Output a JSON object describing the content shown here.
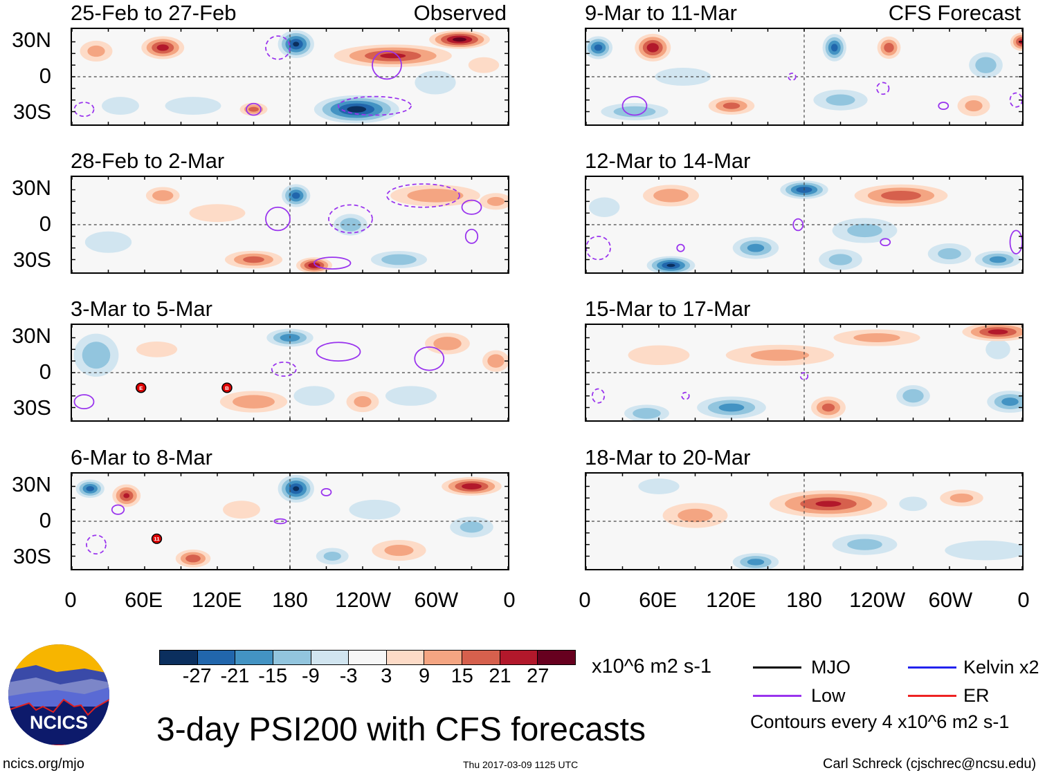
{
  "chart_data": {
    "type": "heatmap",
    "title": "3-day PSI200 with CFS forecasts",
    "units": "x10^6 m2 s-1",
    "column_headers": [
      "Observed",
      "CFS Forecast"
    ],
    "lat_ticks": [
      "30N",
      "0",
      "30S"
    ],
    "lon_ticks": [
      "0",
      "60E",
      "120E",
      "180",
      "120W",
      "60W",
      "0"
    ],
    "colorbar": {
      "ticks": [
        "-27",
        "-21",
        "-15",
        "-9",
        "-3",
        "3",
        "9",
        "15",
        "21",
        "27"
      ],
      "colors": [
        "#0b2f5e",
        "#2166ac",
        "#4393c3",
        "#92c5de",
        "#d1e5f0",
        "#f7f7f7",
        "#fddbc7",
        "#f4a582",
        "#d6604d",
        "#b2182b",
        "#67001f"
      ]
    },
    "panels": [
      {
        "title": "25-Feb to 27-Feb",
        "header": "Observed",
        "col": 0,
        "row": 0,
        "anomalies": [
          [
            75,
            25,
            18,
            10,
            24
          ],
          [
            20,
            22,
            15,
            10,
            12
          ],
          [
            185,
            28,
            15,
            12,
            -28
          ],
          [
            265,
            18,
            50,
            10,
            22
          ],
          [
            320,
            32,
            25,
            8,
            30
          ],
          [
            235,
            -28,
            35,
            12,
            -30
          ],
          [
            150,
            -28,
            12,
            6,
            18
          ],
          [
            100,
            -25,
            30,
            10,
            -6
          ],
          [
            40,
            -25,
            20,
            10,
            -6
          ],
          [
            300,
            -5,
            20,
            12,
            -9
          ],
          [
            340,
            10,
            15,
            8,
            9
          ]
        ],
        "low_contours": [
          [
            260,
            10,
            12,
            12,
            0
          ],
          [
            170,
            25,
            10,
            10,
            1
          ],
          [
            250,
            -25,
            30,
            8,
            1
          ],
          [
            10,
            -28,
            8,
            6,
            1
          ],
          [
            150,
            -28,
            6,
            5,
            0
          ]
        ],
        "storms": []
      },
      {
        "title": "28-Feb to 2-Mar",
        "col": 0,
        "row": 1,
        "anomalies": [
          [
            75,
            25,
            15,
            8,
            15
          ],
          [
            185,
            25,
            12,
            10,
            -24
          ],
          [
            230,
            0,
            15,
            10,
            -15
          ],
          [
            300,
            25,
            40,
            10,
            15
          ],
          [
            150,
            -30,
            25,
            8,
            18
          ],
          [
            200,
            -35,
            15,
            7,
            26
          ],
          [
            270,
            -30,
            25,
            8,
            -15
          ],
          [
            30,
            -15,
            25,
            12,
            -6
          ],
          [
            120,
            10,
            30,
            10,
            6
          ],
          [
            350,
            20,
            15,
            8,
            12
          ]
        ],
        "low_contours": [
          [
            170,
            5,
            10,
            10,
            0
          ],
          [
            230,
            5,
            18,
            12,
            1
          ],
          [
            330,
            15,
            8,
            6,
            0
          ],
          [
            330,
            -10,
            5,
            6,
            0
          ],
          [
            215,
            -33,
            15,
            5,
            0
          ],
          [
            290,
            25,
            30,
            10,
            1
          ]
        ],
        "storms": []
      },
      {
        "title": "3-Mar to 5-Mar",
        "col": 0,
        "row": 2,
        "anomalies": [
          [
            180,
            30,
            20,
            8,
            -20
          ],
          [
            20,
            15,
            20,
            20,
            -15
          ],
          [
            310,
            25,
            20,
            10,
            15
          ],
          [
            350,
            10,
            12,
            10,
            15
          ],
          [
            150,
            -25,
            30,
            10,
            15
          ],
          [
            240,
            -25,
            15,
            10,
            12
          ],
          [
            200,
            -20,
            20,
            10,
            -9
          ],
          [
            70,
            20,
            20,
            8,
            9
          ],
          [
            280,
            -20,
            25,
            10,
            -9
          ]
        ],
        "low_contours": [
          [
            220,
            18,
            18,
            8,
            0
          ],
          [
            175,
            3,
            10,
            6,
            1
          ],
          [
            295,
            12,
            12,
            10,
            0
          ],
          [
            10,
            -25,
            8,
            6,
            0
          ]
        ],
        "storms": [
          [
            57,
            -13,
            "E"
          ],
          [
            128,
            -13,
            "B"
          ]
        ]
      },
      {
        "title": "6-Mar to 8-Mar",
        "col": 0,
        "row": 3,
        "anomalies": [
          [
            15,
            28,
            12,
            8,
            -24
          ],
          [
            45,
            22,
            12,
            10,
            22
          ],
          [
            185,
            28,
            15,
            12,
            -28
          ],
          [
            330,
            30,
            25,
            8,
            26
          ],
          [
            100,
            -32,
            15,
            8,
            20
          ],
          [
            270,
            -25,
            25,
            10,
            12
          ],
          [
            330,
            -5,
            20,
            10,
            -12
          ],
          [
            250,
            10,
            25,
            10,
            -9
          ],
          [
            140,
            10,
            20,
            10,
            6
          ],
          [
            215,
            -30,
            15,
            8,
            -12
          ]
        ],
        "low_contours": [
          [
            38,
            10,
            5,
            4,
            0
          ],
          [
            172,
            0,
            5,
            2,
            0
          ],
          [
            20,
            -20,
            8,
            8,
            1
          ],
          [
            210,
            25,
            4,
            3,
            0
          ]
        ],
        "storms": [
          [
            70,
            -15,
            "11"
          ]
        ]
      },
      {
        "title": "9-Mar to 11-Mar",
        "header": "CFS Forecast",
        "col": 1,
        "row": 0,
        "anomalies": [
          [
            10,
            25,
            12,
            10,
            -24
          ],
          [
            55,
            25,
            15,
            12,
            26
          ],
          [
            205,
            25,
            10,
            12,
            -24
          ],
          [
            250,
            25,
            10,
            10,
            20
          ],
          [
            360,
            30,
            10,
            8,
            24
          ],
          [
            330,
            10,
            15,
            12,
            -15
          ],
          [
            120,
            -25,
            20,
            8,
            18
          ],
          [
            40,
            -30,
            30,
            8,
            -15
          ],
          [
            210,
            -20,
            25,
            10,
            -12
          ],
          [
            320,
            -25,
            15,
            10,
            12
          ],
          [
            80,
            0,
            30,
            10,
            -6
          ]
        ],
        "low_contours": [
          [
            40,
            -25,
            10,
            8,
            0
          ],
          [
            245,
            -10,
            5,
            5,
            1
          ],
          [
            170,
            0,
            3,
            3,
            1
          ],
          [
            295,
            -25,
            4,
            3,
            0
          ],
          [
            355,
            -20,
            5,
            6,
            1
          ]
        ],
        "storms": []
      },
      {
        "title": "12-Mar to 14-Mar",
        "col": 1,
        "row": 1,
        "anomalies": [
          [
            180,
            30,
            20,
            8,
            -26
          ],
          [
            260,
            25,
            40,
            10,
            20
          ],
          [
            70,
            25,
            25,
            10,
            15
          ],
          [
            230,
            -5,
            30,
            12,
            -12
          ],
          [
            70,
            -35,
            20,
            8,
            -28
          ],
          [
            140,
            -20,
            20,
            10,
            -18
          ],
          [
            210,
            -30,
            20,
            10,
            -12
          ],
          [
            300,
            -25,
            20,
            10,
            -12
          ],
          [
            340,
            -30,
            20,
            8,
            -18
          ],
          [
            15,
            15,
            15,
            10,
            -9
          ]
        ],
        "low_contours": [
          [
            175,
            0,
            4,
            5,
            0
          ],
          [
            247,
            -15,
            4,
            3,
            0
          ],
          [
            78,
            -20,
            3,
            3,
            0
          ],
          [
            10,
            -20,
            10,
            10,
            1
          ],
          [
            355,
            -15,
            5,
            10,
            0
          ]
        ],
        "storms": []
      },
      {
        "title": "15-Mar to 17-Mar",
        "col": 1,
        "row": 2,
        "anomalies": [
          [
            340,
            35,
            30,
            8,
            24
          ],
          [
            240,
            30,
            40,
            8,
            12
          ],
          [
            160,
            15,
            50,
            10,
            12
          ],
          [
            60,
            15,
            30,
            10,
            9
          ],
          [
            120,
            -30,
            30,
            10,
            -18
          ],
          [
            50,
            -35,
            20,
            8,
            -15
          ],
          [
            200,
            -30,
            15,
            10,
            18
          ],
          [
            270,
            -20,
            15,
            10,
            -15
          ],
          [
            350,
            -25,
            20,
            10,
            -18
          ],
          [
            340,
            20,
            12,
            10,
            -9
          ]
        ],
        "low_contours": [
          [
            180,
            -3,
            3,
            3,
            1
          ],
          [
            82,
            -20,
            3,
            3,
            1
          ],
          [
            10,
            -20,
            5,
            6,
            1
          ]
        ],
        "storms": []
      },
      {
        "title": "18-Mar to 20-Mar",
        "col": 1,
        "row": 3,
        "anomalies": [
          [
            200,
            15,
            50,
            12,
            22
          ],
          [
            90,
            5,
            30,
            12,
            12
          ],
          [
            310,
            20,
            20,
            8,
            12
          ],
          [
            60,
            30,
            20,
            8,
            -9
          ],
          [
            140,
            -35,
            20,
            8,
            -18
          ],
          [
            230,
            -20,
            30,
            10,
            -12
          ],
          [
            330,
            -25,
            40,
            10,
            -9
          ],
          [
            270,
            15,
            15,
            8,
            -6
          ]
        ],
        "low_contours": [],
        "storms": []
      }
    ]
  },
  "legend": {
    "items": [
      {
        "label": "MJO",
        "color": "#000000"
      },
      {
        "label": "Low",
        "color": "#9933ee"
      },
      {
        "label": "Kelvin x2",
        "color": "#2222ee"
      },
      {
        "label": "ER",
        "color": "#ee2222"
      }
    ],
    "contour_note": "Contours every 4 x10^6 m2 s-1"
  },
  "logo": {
    "text": "NCICS"
  },
  "footer": {
    "url": "ncics.org/mjo",
    "timestamp": "Thu 2017-03-09 1125 UTC",
    "author": "Carl Schreck (cjschrec@ncsu.edu)"
  }
}
